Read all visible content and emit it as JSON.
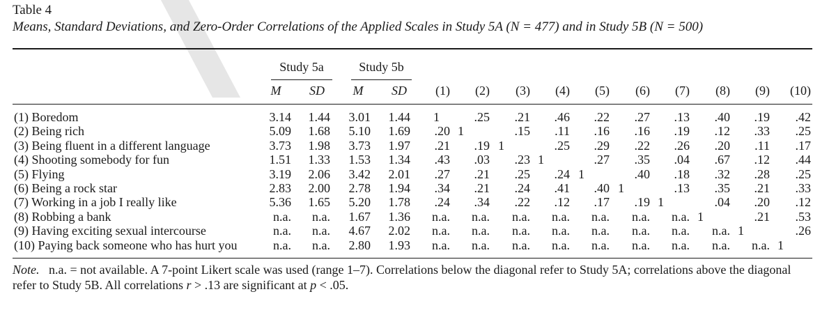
{
  "table": {
    "number": "Table 4",
    "caption": "Means, Standard Deviations, and Zero-Order Correlations of the Applied Scales in Study 5A (N = 477) and in Study 5B (N = 500)",
    "groups": [
      "Study 5a",
      "Study 5b"
    ],
    "stat_headers": [
      "M",
      "SD",
      "M",
      "SD"
    ],
    "corr_headers": [
      "(1)",
      "(2)",
      "(3)",
      "(4)",
      "(5)",
      "(6)",
      "(7)",
      "(8)",
      "(9)",
      "(10)"
    ],
    "rows": [
      {
        "label": "(1) Boredom",
        "cells": [
          "3.14",
          "1.44",
          "3.01",
          "1.44",
          "1",
          "",
          ".25",
          "",
          ".21",
          "",
          ".46",
          "",
          ".22",
          "",
          ".27",
          "",
          ".13",
          "",
          ".40",
          "",
          ".19",
          "",
          ".42"
        ]
      },
      {
        "label": "(2) Being rich",
        "cells": [
          "5.09",
          "1.68",
          "5.10",
          "1.69",
          ".20",
          "1",
          "",
          "",
          ".15",
          "",
          ".11",
          "",
          ".16",
          "",
          ".16",
          "",
          ".19",
          "",
          ".12",
          "",
          ".33",
          "",
          ".25"
        ]
      },
      {
        "label": "(3) Being fluent in a different language",
        "cells": [
          "3.73",
          "1.98",
          "3.73",
          "1.97",
          ".21",
          "",
          ".19",
          "1",
          "",
          "",
          ".25",
          "",
          ".29",
          "",
          ".22",
          "",
          ".26",
          "",
          ".20",
          "",
          ".11",
          "",
          ".17"
        ]
      },
      {
        "label": "(4) Shooting somebody for fun",
        "cells": [
          "1.51",
          "1.33",
          "1.53",
          "1.34",
          ".43",
          "",
          ".03",
          "",
          ".23",
          "1",
          "",
          "",
          ".27",
          "",
          ".35",
          "",
          ".04",
          "",
          ".67",
          "",
          ".12",
          "",
          ".44"
        ]
      },
      {
        "label": "(5) Flying",
        "cells": [
          "3.19",
          "2.06",
          "3.42",
          "2.01",
          ".27",
          "",
          ".21",
          "",
          ".25",
          "",
          ".24",
          "1",
          "",
          "",
          ".40",
          "",
          ".18",
          "",
          ".32",
          "",
          ".28",
          "",
          ".25"
        ]
      },
      {
        "label": "(6) Being a rock star",
        "cells": [
          "2.83",
          "2.00",
          "2.78",
          "1.94",
          ".34",
          "",
          ".21",
          "",
          ".24",
          "",
          ".41",
          "",
          ".40",
          "1",
          "",
          "",
          ".13",
          "",
          ".35",
          "",
          ".21",
          "",
          ".33"
        ]
      },
      {
        "label": "(7) Working in a job I really like",
        "cells": [
          "5.36",
          "1.65",
          "5.20",
          "1.78",
          ".24",
          "",
          ".34",
          "",
          ".22",
          "",
          ".12",
          "",
          ".17",
          "",
          ".19",
          "1",
          "",
          "",
          ".04",
          "",
          ".20",
          "",
          ".12"
        ]
      },
      {
        "label": "(8) Robbing a bank",
        "cells": [
          "n.a.",
          "n.a.",
          "1.67",
          "1.36",
          "n.a.",
          "",
          "n.a.",
          "",
          "n.a.",
          "",
          "n.a.",
          "",
          "n.a.",
          "",
          "n.a.",
          "",
          "n.a.",
          "1",
          "",
          "",
          ".21",
          "",
          ".53"
        ]
      },
      {
        "label": "(9) Having exciting sexual intercourse",
        "cells": [
          "n.a.",
          "n.a.",
          "4.67",
          "2.02",
          "n.a.",
          "",
          "n.a.",
          "",
          "n.a.",
          "",
          "n.a.",
          "",
          "n.a.",
          "",
          "n.a.",
          "",
          "n.a.",
          "",
          "n.a.",
          "1",
          "",
          "",
          ".26"
        ]
      },
      {
        "label": "(10) Paying back someone who has hurt you",
        "cells": [
          "n.a.",
          "n.a.",
          "2.80",
          "1.93",
          "n.a.",
          "",
          "n.a.",
          "",
          "n.a.",
          "",
          "n.a.",
          "",
          "n.a.",
          "",
          "n.a.",
          "",
          "n.a.",
          "",
          "n.a.",
          "",
          "n.a.",
          "1",
          ""
        ]
      }
    ],
    "note": {
      "label": "Note.",
      "line1": "n.a. = not available. A 7-point Likert scale was used (range 1–7). Correlations below the diagonal refer to Study 5A; correlations above the diagonal",
      "line2_a": "refer to Study 5B. All correlations ",
      "r": "r",
      "line2_b": " > .13 are significant at ",
      "p": "p",
      "line2_c": " < .05."
    }
  }
}
